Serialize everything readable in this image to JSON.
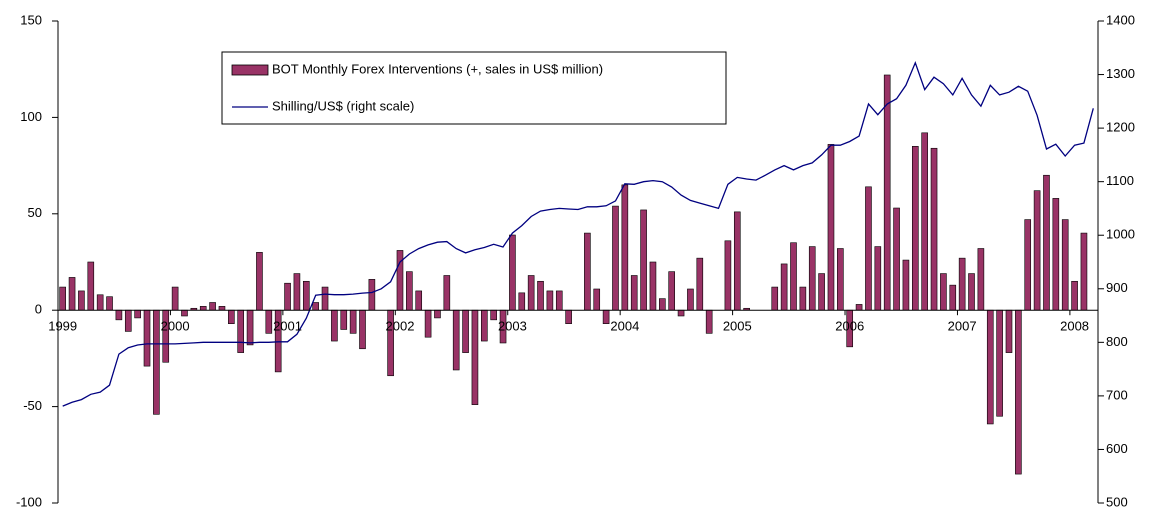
{
  "chart_data": {
    "type": "bar",
    "categories": [
      "1999",
      null,
      null,
      null,
      null,
      null,
      null,
      null,
      null,
      null,
      null,
      null,
      "2000",
      null,
      null,
      null,
      null,
      null,
      null,
      null,
      null,
      null,
      null,
      null,
      "2001",
      null,
      null,
      null,
      null,
      null,
      null,
      null,
      null,
      null,
      null,
      null,
      "2002",
      null,
      null,
      null,
      null,
      null,
      null,
      null,
      null,
      null,
      null,
      null,
      "2003",
      null,
      null,
      null,
      null,
      null,
      null,
      null,
      null,
      null,
      null,
      null,
      "2004",
      null,
      null,
      null,
      null,
      null,
      null,
      null,
      null,
      null,
      null,
      null,
      "2005",
      null,
      null,
      null,
      null,
      null,
      null,
      null,
      null,
      null,
      null,
      null,
      "2006",
      null,
      null,
      null,
      null,
      null,
      null,
      null,
      null,
      null,
      null,
      null,
      "2007",
      null,
      null,
      null,
      null,
      null,
      null,
      null,
      null,
      null,
      null,
      null,
      "2008",
      null,
      null
    ],
    "series": [
      {
        "name": "BOT Monthly Forex Interventions (+, sales in US$ million)",
        "type": "bar",
        "color": "#993366",
        "values": [
          12,
          17,
          10,
          25,
          8,
          7,
          -5,
          -11,
          -4,
          -29,
          -54,
          -27,
          12,
          -3,
          1,
          2,
          4,
          2,
          -7,
          -22,
          -18,
          30,
          -12,
          -32,
          14,
          19,
          15,
          4,
          12,
          -16,
          -10,
          -12,
          -20,
          16,
          0,
          -34,
          31,
          20,
          10,
          -14,
          -4,
          18,
          -31,
          -22,
          -49,
          -16,
          -5,
          -17,
          39,
          9,
          18,
          15,
          10,
          10,
          -7,
          0,
          40,
          11,
          -7,
          54,
          65,
          18,
          52,
          25,
          6,
          20,
          -3,
          11,
          27,
          -12,
          0,
          36,
          51,
          1,
          0,
          0,
          12,
          24,
          35,
          12,
          33,
          19,
          86,
          32,
          -19,
          3,
          64,
          33,
          122,
          53,
          26,
          85,
          92,
          84,
          19,
          13,
          27,
          19,
          32,
          -59,
          -55,
          -22,
          -85,
          47,
          62,
          70,
          58,
          47,
          15,
          40,
          null
        ]
      },
      {
        "name": "Shilling/US$ (right scale)",
        "type": "line",
        "color": "#000080",
        "axis": "y2",
        "values": [
          681,
          688,
          693,
          703,
          707,
          720,
          778,
          790,
          795,
          797,
          797,
          797,
          797,
          798,
          799,
          800,
          800,
          800,
          800,
          800,
          799,
          800,
          800,
          801,
          801,
          815,
          845,
          888,
          890,
          889,
          889,
          890,
          892,
          893,
          900,
          913,
          950,
          965,
          975,
          982,
          987,
          988,
          975,
          967,
          973,
          977,
          983,
          978,
          1004,
          1018,
          1035,
          1045,
          1048,
          1050,
          1049,
          1048,
          1053,
          1053,
          1055,
          1064,
          1096,
          1095,
          1100,
          1102,
          1100,
          1090,
          1075,
          1065,
          1060,
          1055,
          1050,
          1095,
          1108,
          1105,
          1103,
          1112,
          1122,
          1130,
          1122,
          1130,
          1135,
          1150,
          1168,
          1168,
          1175,
          1185,
          1245,
          1225,
          1245,
          1255,
          1280,
          1322,
          1272,
          1295,
          1283,
          1262,
          1293,
          1262,
          1241,
          1280,
          1262,
          1267,
          1278,
          1269,
          1224,
          1161,
          1170,
          1148,
          1168,
          1172,
          1237
        ]
      }
    ],
    "ylim": [
      -100,
      150
    ],
    "yticks": [
      -100,
      -50,
      0,
      50,
      100,
      150
    ],
    "y2lim": [
      500,
      1400
    ],
    "y2ticks": [
      500,
      600,
      700,
      800,
      900,
      1000,
      1100,
      1200,
      1300,
      1400
    ],
    "legend": "upper left"
  }
}
